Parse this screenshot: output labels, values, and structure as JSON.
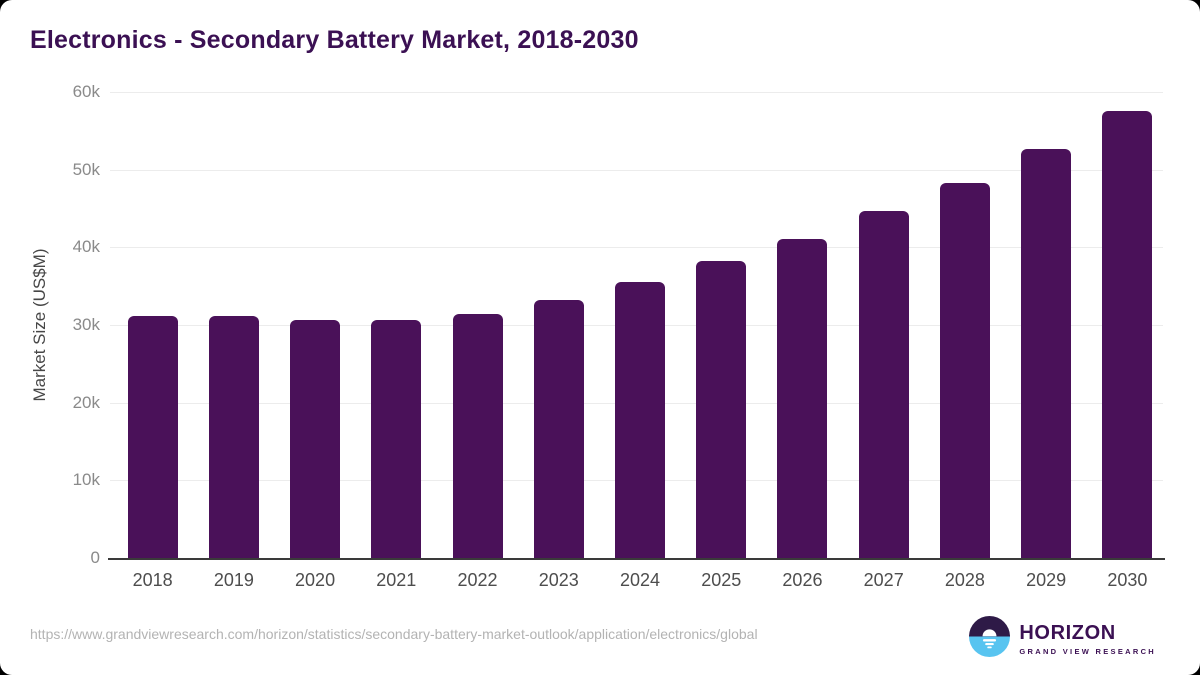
{
  "chart_data": {
    "type": "bar",
    "title": "Electronics - Secondary Battery Market, 2018-2030",
    "categories": [
      "2018",
      "2019",
      "2020",
      "2021",
      "2022",
      "2023",
      "2024",
      "2025",
      "2026",
      "2027",
      "2028",
      "2029",
      "2030"
    ],
    "values": [
      31100,
      31100,
      30600,
      30700,
      31400,
      33200,
      35600,
      38200,
      41100,
      44700,
      48300,
      52700,
      57500
    ],
    "xlabel": "",
    "ylabel": "Market Size (US$M)",
    "ylim": [
      0,
      60000
    ],
    "yticks": [
      {
        "v": 0,
        "label": "0"
      },
      {
        "v": 10000,
        "label": "10k"
      },
      {
        "v": 20000,
        "label": "20k"
      },
      {
        "v": 30000,
        "label": "30k"
      },
      {
        "v": 40000,
        "label": "40k"
      },
      {
        "v": 50000,
        "label": "50k"
      },
      {
        "v": 60000,
        "label": "60k"
      }
    ],
    "grid": true,
    "legend": "none",
    "bar_color": "#4a1159"
  },
  "colors": {
    "title": "#3b1053",
    "bar": "#4a1159",
    "gridline": "#ececec",
    "axis_line": "#3a3a3a",
    "tick_label": "#8a8a8a",
    "logo_dark": "#2e1a47",
    "logo_blue": "#58c4f0"
  },
  "footer": {
    "source_url": "https://www.grandviewresearch.com/horizon/statistics/secondary-battery-market-outlook/application/electronics/global",
    "logo": {
      "name": "HORIZON",
      "subtitle": "GRAND VIEW RESEARCH"
    }
  }
}
